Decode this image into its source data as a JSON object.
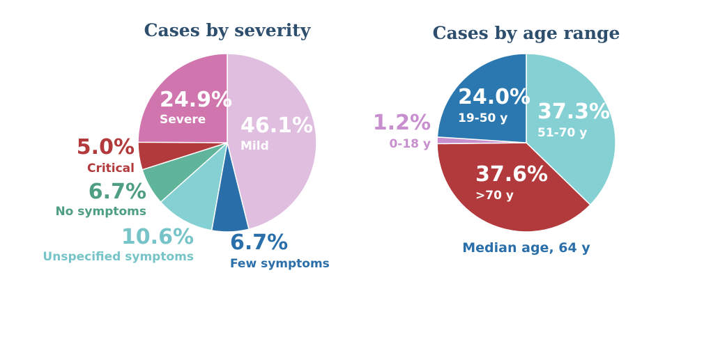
{
  "chart_data": [
    {
      "type": "pie",
      "title": "Cases by severity",
      "slices": [
        {
          "label": "Mild",
          "value": 46.1,
          "value_label": "46.1%",
          "color": "#dfbedf"
        },
        {
          "label": "Few symptoms",
          "value": 6.7,
          "value_label": "6.7%",
          "color": "#2a6fa9"
        },
        {
          "label": "Unspecified symptoms",
          "value": 10.6,
          "value_label": "10.6%",
          "color": "#85d0d3"
        },
        {
          "label": "No symptoms",
          "value": 6.7,
          "value_label": "6.7%",
          "color": "#5fb49a"
        },
        {
          "label": "Critical",
          "value": 5.0,
          "value_label": "5.0%",
          "color": "#b23a3c"
        },
        {
          "label": "Severe",
          "value": 24.9,
          "value_label": "24.9%",
          "color": "#d175ae"
        }
      ]
    },
    {
      "type": "pie",
      "title": "Cases by age range",
      "note": "Median age, 64 y",
      "slices": [
        {
          "label": "51-70 y",
          "value": 37.3,
          "value_label": "37.3%",
          "color": "#85d0d3"
        },
        {
          "label": ">70 y",
          "value": 37.6,
          "value_label": "37.6%",
          "color": "#b23a3c"
        },
        {
          "label": "0-18 y",
          "value": 1.2,
          "value_label": "1.2%",
          "color": "#c88fcf"
        },
        {
          "label": "19-50 y",
          "value": 24.0,
          "value_label": "24.0%",
          "color": "#2a78af"
        }
      ]
    }
  ]
}
